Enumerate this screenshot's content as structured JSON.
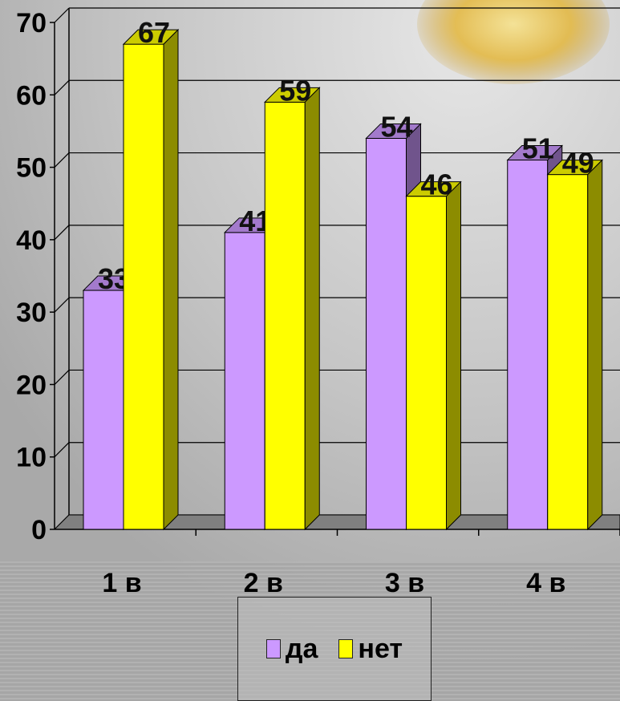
{
  "chart_data": {
    "type": "bar",
    "categories": [
      "1 в",
      "2 в",
      "3 в",
      "4 в"
    ],
    "series": [
      {
        "name": "да",
        "values": [
          33,
          41,
          54,
          51
        ],
        "color": "#CC99FF"
      },
      {
        "name": "нет",
        "values": [
          67,
          59,
          46,
          49
        ],
        "color": "#FFFF00"
      }
    ],
    "ylim": [
      0,
      70
    ],
    "yticks": [
      0,
      10,
      20,
      30,
      40,
      50,
      60,
      70
    ],
    "grid": true,
    "legend_position": "bottom",
    "style": "3d-clustered-column"
  }
}
